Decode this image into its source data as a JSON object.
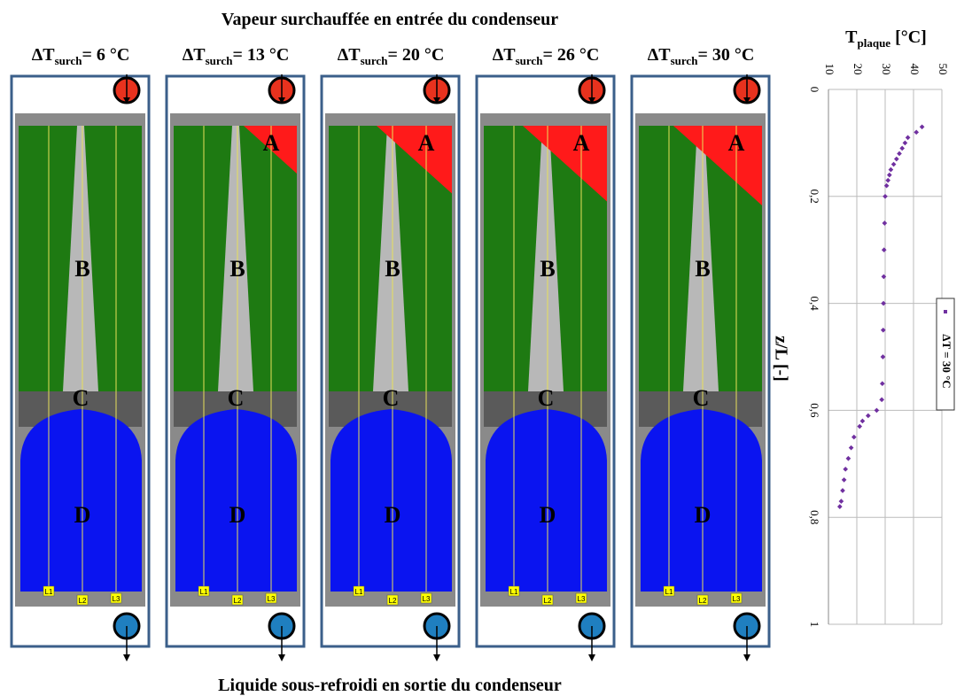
{
  "title_top": "Vapeur surchauffée en entrée du condenseur",
  "title_bottom": "Liquide sous-refroidi en sortie du condenseur",
  "panels": [
    {
      "delta": "ΔT",
      "sub": "surch",
      "value": "= 6 °C",
      "zones": [
        "B",
        "C",
        "D"
      ],
      "probes": [
        "L1",
        "L2",
        "L3"
      ]
    },
    {
      "delta": "ΔT",
      "sub": "surch",
      "value": "= 13 °C",
      "zones": [
        "A",
        "B",
        "C",
        "D"
      ],
      "probes": [
        "L1",
        "L2",
        "L3"
      ]
    },
    {
      "delta": "ΔT",
      "sub": "surch",
      "value": "= 20 °C",
      "zones": [
        "A",
        "B",
        "C",
        "D"
      ],
      "probes": [
        "L1",
        "L2",
        "L3"
      ]
    },
    {
      "delta": "ΔT",
      "sub": "surch",
      "value": "= 26 °C",
      "zones": [
        "A",
        "B",
        "C",
        "D"
      ],
      "probes": [
        "L1",
        "L2",
        "L3"
      ]
    },
    {
      "delta": "ΔT",
      "sub": "surch",
      "value": "= 30 °C",
      "zones": [
        "A",
        "B",
        "C",
        "D"
      ],
      "probes": [
        "L1",
        "L2",
        "L3"
      ]
    }
  ],
  "chart_data": {
    "type": "scatter",
    "x_label": "T",
    "x_label_sub": "plaque",
    "x_label_unit": " [°C]",
    "y_label": "z/L [-]",
    "xlim": [
      10,
      50
    ],
    "xticks": [
      10,
      20,
      30,
      40,
      50
    ],
    "ylim": [
      0,
      1
    ],
    "yticks": [
      0,
      {
        "value": 0.2,
        "label": "0,2"
      },
      {
        "value": 0.4,
        "label": "0,4"
      },
      {
        "value": 0.6,
        "label": "0,6"
      },
      {
        "value": 0.8,
        "label": "0,8"
      },
      1
    ],
    "grid": true,
    "series": [
      {
        "name": "ΔT = 30 °C",
        "color": "#7030a0",
        "x": [
          43,
          41,
          38,
          37,
          36,
          35,
          34,
          33,
          32,
          31.5,
          31,
          30.5,
          30,
          29.8,
          29.6,
          29.5,
          29.4,
          29.3,
          29.2,
          29,
          28.8,
          27,
          24,
          22,
          21,
          19,
          18,
          17,
          16,
          15.5,
          15,
          14.5,
          14
        ],
        "values": [
          0.07,
          0.08,
          0.09,
          0.1,
          0.11,
          0.12,
          0.13,
          0.14,
          0.15,
          0.16,
          0.17,
          0.18,
          0.2,
          0.25,
          0.3,
          0.35,
          0.4,
          0.45,
          0.5,
          0.55,
          0.58,
          0.6,
          0.61,
          0.62,
          0.63,
          0.65,
          0.67,
          0.69,
          0.71,
          0.73,
          0.75,
          0.77,
          0.78
        ]
      }
    ]
  }
}
